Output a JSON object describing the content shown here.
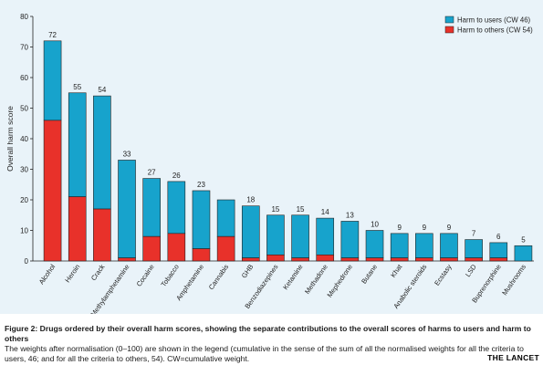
{
  "chart_data": {
    "type": "bar",
    "stacked": true,
    "ylabel": "Overall harm score",
    "ylim": [
      0,
      80
    ],
    "yticks": [
      0,
      10,
      20,
      30,
      40,
      50,
      60,
      70,
      80
    ],
    "grid": false,
    "legend_position": "top-right",
    "categories": [
      "Alcohol",
      "Heroin",
      "Crack",
      "Methylamphetamine",
      "Cocaine",
      "Tobacco",
      "Amphetamine",
      "Cannabis",
      "GHB",
      "Benzodiazepines",
      "Ketamine",
      "Methadone",
      "Mephedrone",
      "Butane",
      "Khat",
      "Anabolic steroids",
      "Ecstasy",
      "LSD",
      "Buprenorphine",
      "Mushrooms"
    ],
    "totals": [
      72,
      55,
      54,
      33,
      27,
      26,
      23,
      20,
      18,
      15,
      15,
      14,
      13,
      10,
      9,
      9,
      9,
      7,
      6,
      5
    ],
    "total_labels": [
      "72",
      "55",
      "54",
      "33",
      "27",
      "26",
      "23",
      "",
      "18",
      "15",
      "15",
      "14",
      "13",
      "10",
      "9",
      "9",
      "9",
      "7",
      "6",
      "5"
    ],
    "series": [
      {
        "name": "Harm to users (CW 46)",
        "color": "#17a3cc",
        "values": [
          26,
          34,
          37,
          32,
          19,
          17,
          19,
          12,
          17,
          13,
          14,
          12,
          12,
          9,
          8,
          8,
          8,
          6,
          5,
          5
        ]
      },
      {
        "name": "Harm to others (CW 54)",
        "color": "#e8312a",
        "values": [
          46,
          21,
          17,
          1,
          8,
          9,
          4,
          8,
          1,
          2,
          1,
          2,
          1,
          1,
          1,
          1,
          1,
          1,
          1,
          0
        ]
      }
    ]
  },
  "caption": {
    "title": "Figure 2: Drugs ordered by their overall harm scores, showing the separate contributions to the overall scores of harms to users and harm to others",
    "body": "The weights after normalisation (0–100) are shown in the legend (cumulative in the sense of the sum of all the normalised weights for all the criteria to users, 46; and for all the criteria to others, 54). CW=cumulative weight."
  },
  "journal": "THE LANCET"
}
